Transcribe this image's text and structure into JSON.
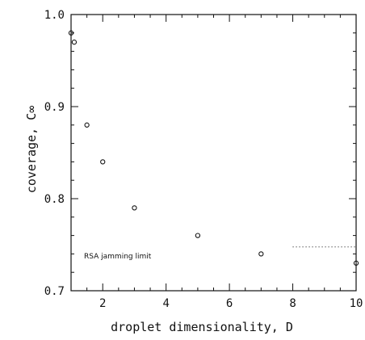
{
  "chart_data": {
    "type": "scatter",
    "xlabel": "droplet dimensionality, D",
    "ylabel": "coverage, C∞",
    "xlim": [
      1,
      10
    ],
    "ylim": [
      0.7,
      1.0
    ],
    "x_ticks": [
      "2",
      "4",
      "6",
      "8",
      "10"
    ],
    "y_ticks": [
      "0.7",
      "0.8",
      "0.9",
      "1.0"
    ],
    "grid": false,
    "series": [
      {
        "marker": "open-circle",
        "color": "#111111",
        "points": [
          {
            "x": 1,
            "y": 0.98
          },
          {
            "x": 1.1,
            "y": 0.97
          },
          {
            "x": 1.5,
            "y": 0.88
          },
          {
            "x": 2,
            "y": 0.84
          },
          {
            "x": 3,
            "y": 0.79
          },
          {
            "x": 5,
            "y": 0.76
          },
          {
            "x": 7,
            "y": 0.74
          },
          {
            "x": 10,
            "y": 0.73
          }
        ]
      }
    ],
    "reference_line": {
      "label": "RSA jamming limit",
      "y": 0.7476,
      "x_range": [
        8,
        10
      ],
      "style": "dotted"
    }
  }
}
